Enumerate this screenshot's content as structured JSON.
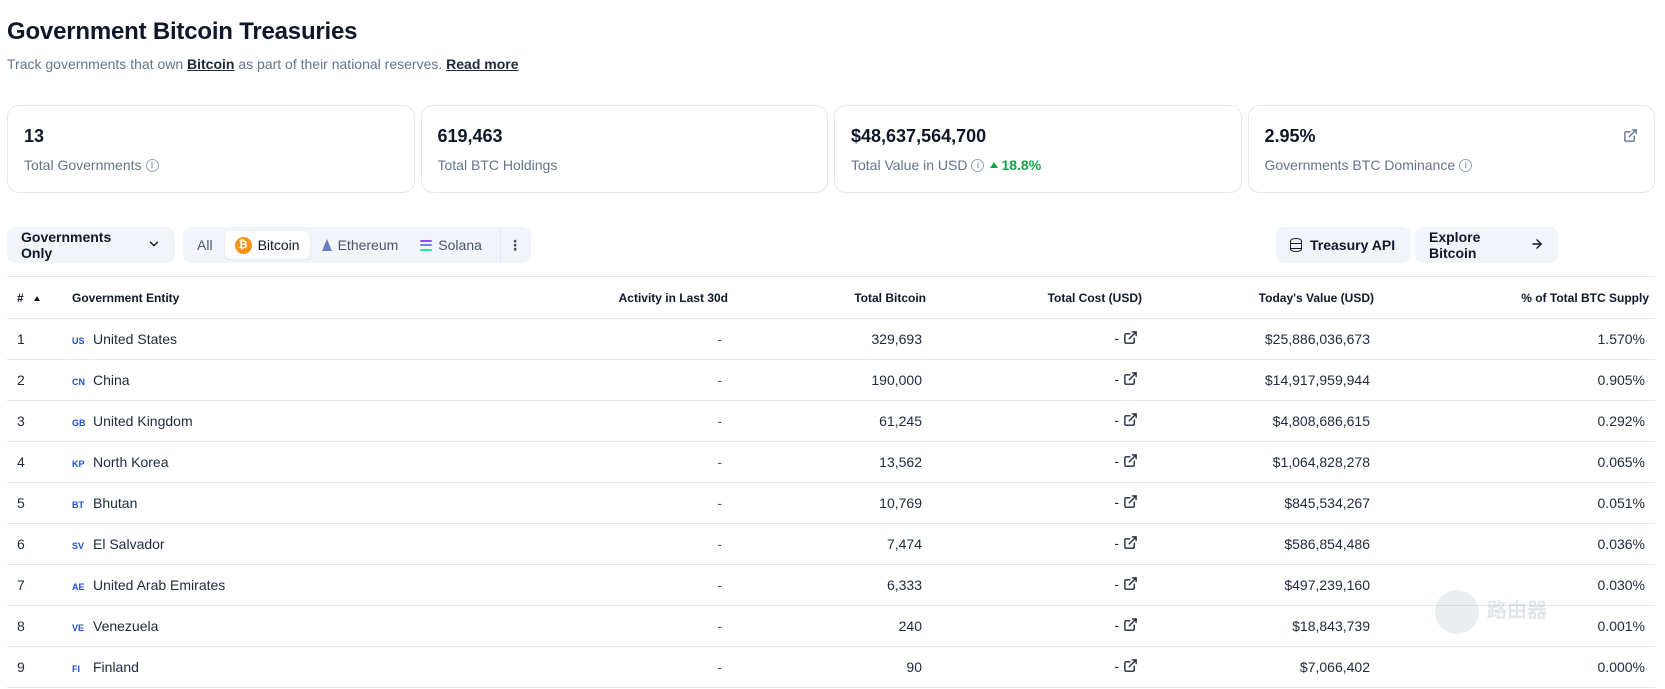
{
  "page": {
    "title": "Government Bitcoin Treasuries",
    "subtitle_pre": "Track governments that own ",
    "subtitle_link": "Bitcoin",
    "subtitle_post": " as part of their national reserves. ",
    "read_more": "Read more"
  },
  "stats": [
    {
      "value": "13",
      "label": "Total Governments",
      "info": true
    },
    {
      "value": "619,463",
      "label": "Total BTC Holdings",
      "info": false
    },
    {
      "value": "$48,637,564,700",
      "label": "Total Value in USD",
      "info": true,
      "trend": "18.8%",
      "trend_color": "#16a34a"
    },
    {
      "value": "2.95%",
      "label": "Governments BTC Dominance",
      "info": true,
      "external_link_icon": "external-link-icon"
    }
  ],
  "toolbar": {
    "scope_label": "Governments Only",
    "filters": {
      "all": "All",
      "bitcoin": "Bitcoin",
      "ethereum": "Ethereum",
      "solana": "Solana"
    },
    "active_filter": "Bitcoin",
    "api_label": "Treasury API",
    "explore_label": "Explore Bitcoin"
  },
  "table": {
    "columns": [
      "#",
      "Government Entity",
      "Activity in Last 30d",
      "Total Bitcoin",
      "Total Cost (USD)",
      "Today's Value (USD)",
      "% of Total BTC Supply"
    ],
    "rows": [
      {
        "rank": "1",
        "code": "US",
        "name": "United States",
        "activity": "-",
        "total_btc": "329,693",
        "cost": "-",
        "value": "$25,886,036,673",
        "pct": "1.570%"
      },
      {
        "rank": "2",
        "code": "CN",
        "name": "China",
        "activity": "-",
        "total_btc": "190,000",
        "cost": "-",
        "value": "$14,917,959,944",
        "pct": "0.905%"
      },
      {
        "rank": "3",
        "code": "GB",
        "name": "United Kingdom",
        "activity": "-",
        "total_btc": "61,245",
        "cost": "-",
        "value": "$4,808,686,615",
        "pct": "0.292%"
      },
      {
        "rank": "4",
        "code": "KP",
        "name": "North Korea",
        "activity": "-",
        "total_btc": "13,562",
        "cost": "-",
        "value": "$1,064,828,278",
        "pct": "0.065%"
      },
      {
        "rank": "5",
        "code": "BT",
        "name": "Bhutan",
        "activity": "-",
        "total_btc": "10,769",
        "cost": "-",
        "value": "$845,534,267",
        "pct": "0.051%"
      },
      {
        "rank": "6",
        "code": "SV",
        "name": "El Salvador",
        "activity": "-",
        "total_btc": "7,474",
        "cost": "-",
        "value": "$586,854,486",
        "pct": "0.036%"
      },
      {
        "rank": "7",
        "code": "AE",
        "name": "United Arab Emirates",
        "activity": "-",
        "total_btc": "6,333",
        "cost": "-",
        "value": "$497,239,160",
        "pct": "0.030%"
      },
      {
        "rank": "8",
        "code": "VE",
        "name": "Venezuela",
        "activity": "-",
        "total_btc": "240",
        "cost": "-",
        "value": "$18,843,739",
        "pct": "0.001%"
      },
      {
        "rank": "9",
        "code": "FI",
        "name": "Finland",
        "activity": "-",
        "total_btc": "90",
        "cost": "-",
        "value": "$7,066,402",
        "pct": "0.000%"
      }
    ]
  },
  "watermark": {
    "text": "路由器"
  }
}
